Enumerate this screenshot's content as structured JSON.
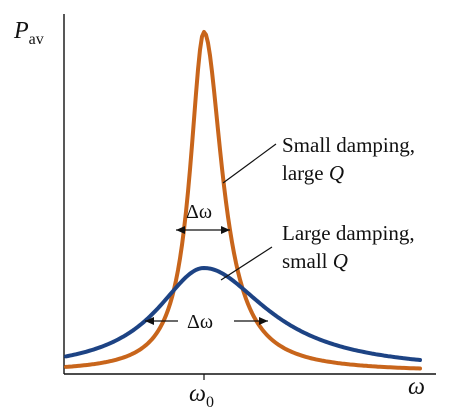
{
  "axes": {
    "y_label": "P",
    "y_label_sub": "av",
    "x_label": "ω",
    "x_tick_label": "ω",
    "x_tick_sub": "0"
  },
  "curves": {
    "small_damping": {
      "label_line1": "Small damping,",
      "label_line2_text": "large ",
      "label_line2_q": "Q",
      "color": "#c8651b"
    },
    "large_damping": {
      "label_line1": "Large damping,",
      "label_line2_text": "small ",
      "label_line2_q": "Q",
      "color": "#1d4384"
    }
  },
  "width_markers": {
    "narrow_label": "Δω",
    "wide_label": "Δω"
  }
}
